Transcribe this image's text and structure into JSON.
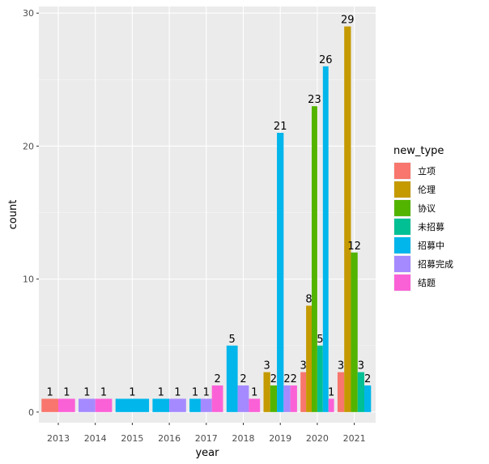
{
  "chart_data": {
    "type": "bar",
    "categories": [
      "2013",
      "2014",
      "2015",
      "2016",
      "2017",
      "2018",
      "2019",
      "2020",
      "2021"
    ],
    "xlabel": "year",
    "ylabel": "count",
    "ylim": [
      -0.8,
      30.5
    ],
    "yticks": [
      0,
      10,
      20,
      30
    ],
    "grid": true,
    "legend": {
      "title": "new_type",
      "placement": "right"
    },
    "series": [
      {
        "name": "立项",
        "color": "#F8766D",
        "values": [
          1,
          0,
          0,
          0,
          0,
          0,
          0,
          3,
          3
        ]
      },
      {
        "name": "伦理",
        "color": "#C49A00",
        "values": [
          0,
          0,
          0,
          0,
          0,
          0,
          3,
          8,
          29
        ]
      },
      {
        "name": "协议",
        "color": "#53B400",
        "values": [
          0,
          0,
          0,
          0,
          0,
          0,
          2,
          23,
          12
        ]
      },
      {
        "name": "未招募",
        "color": "#00C094",
        "values": [
          0,
          0,
          0,
          0,
          0,
          0,
          0,
          5,
          3
        ]
      },
      {
        "name": "招募中",
        "color": "#00B6EB",
        "values": [
          0,
          0,
          1,
          1,
          1,
          5,
          21,
          26,
          2
        ]
      },
      {
        "name": "招募完成",
        "color": "#A58AFF",
        "values": [
          0,
          1,
          0,
          1,
          1,
          2,
          2,
          0,
          0
        ]
      },
      {
        "name": "结题",
        "color": "#FB61D7",
        "values": [
          1,
          1,
          0,
          0,
          2,
          1,
          2,
          1,
          0
        ]
      }
    ]
  }
}
